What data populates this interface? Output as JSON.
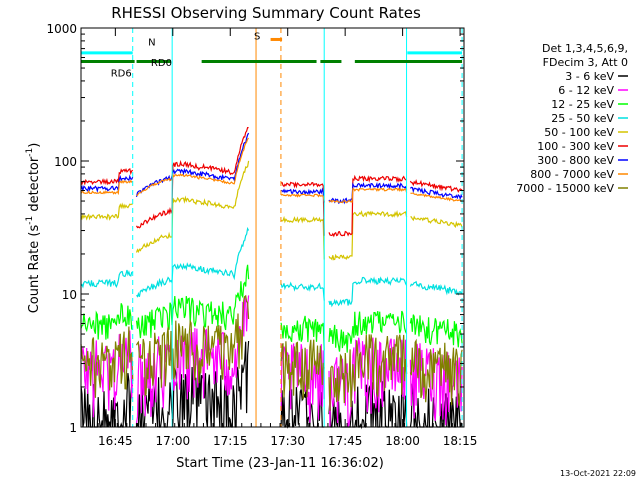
{
  "chart_data": {
    "type": "line",
    "title": "RHESSI Observing Summary Count Rates",
    "xlabel": "Start Time (23-Jan-11 16:36:02)",
    "ylabel_main": "Count Rate (s",
    "ylabel_sup1": "-1",
    "ylabel_mid": " detector",
    "ylabel_sup2": "-1",
    "ylabel_end": ")",
    "y_scale": "log",
    "ylim": [
      1,
      1000
    ],
    "xlim_minutes": [
      0,
      100
    ],
    "x_ticks": [
      {
        "label": "16:45",
        "minute": 8.97
      },
      {
        "label": "17:00",
        "minute": 23.97
      },
      {
        "label": "17:15",
        "minute": 38.97
      },
      {
        "label": "17:30",
        "minute": 53.97
      },
      {
        "label": "17:45",
        "minute": 68.97
      },
      {
        "label": "18:00",
        "minute": 83.97
      },
      {
        "label": "18:15",
        "minute": 98.97
      }
    ],
    "y_ticks": [
      {
        "label": "1",
        "value": 1
      },
      {
        "label": "10",
        "value": 10
      },
      {
        "label": "100",
        "value": 100
      },
      {
        "label": "1000",
        "value": 1000
      }
    ],
    "legend_header": [
      "Det 1,3,4,5,6,9,",
      "FDecim 3, Att 0"
    ],
    "series": [
      {
        "name": "3 - 6 keV",
        "color": "#000000"
      },
      {
        "name": "6 - 12 keV",
        "color": "#ff00ff"
      },
      {
        "name": "12 - 25 keV",
        "color": "#00ff00"
      },
      {
        "name": "25 - 50 keV",
        "color": "#00e0e0"
      },
      {
        "name": "50 - 100 keV",
        "color": "#d4c400"
      },
      {
        "name": "100 - 300 keV",
        "color": "#ee0000"
      },
      {
        "name": "300 - 800 keV",
        "color": "#0000ff"
      },
      {
        "name": "800 - 7000 keV",
        "color": "#ff8800"
      },
      {
        "name": "7000 - 15000 keV",
        "color": "#808000"
      }
    ],
    "annotations": [
      {
        "label": "N",
        "color": "#00ffff"
      },
      {
        "label": "RD0",
        "color": "#008000"
      },
      {
        "label": "RD6",
        "color": "#008000"
      },
      {
        "label": "S",
        "color": "#ff8800"
      }
    ],
    "timestamp": "13-Oct-2021 22:09"
  }
}
